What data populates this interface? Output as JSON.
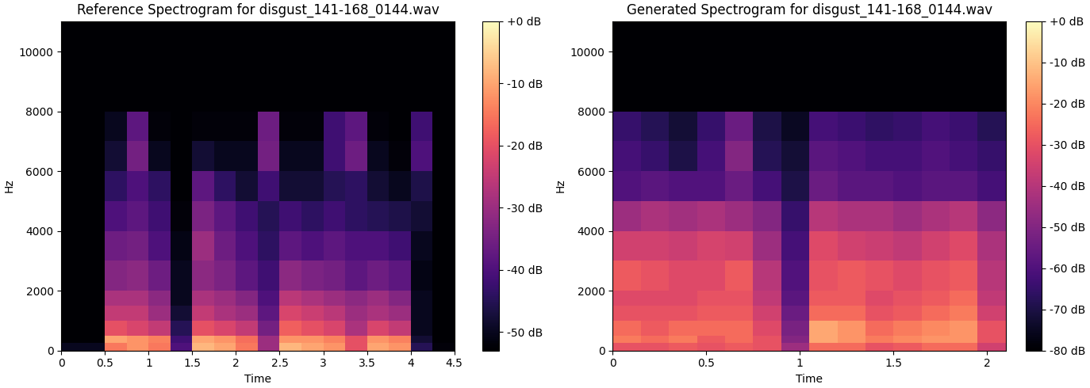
{
  "chart_data": [
    {
      "type": "heatmap",
      "title": "Reference Spectrogram for disgust_141-168_0144.wav",
      "x_label": "Time",
      "y_label": "Hz",
      "xlim": [
        0,
        4.5
      ],
      "xticks": [
        0,
        0.5,
        1,
        1.5,
        2,
        2.5,
        3,
        3.5,
        4,
        4.5
      ],
      "ylim": [
        0,
        11025
      ],
      "yticks": [
        0,
        2000,
        4000,
        6000,
        8000,
        10000
      ],
      "x": [
        0,
        0.25,
        0.5,
        0.75,
        1.0,
        1.25,
        1.5,
        1.75,
        2.0,
        2.25,
        2.5,
        2.75,
        3.0,
        3.25,
        3.5,
        3.75,
        4.0,
        4.25,
        4.5
      ],
      "y": [
        0,
        250,
        500,
        1000,
        1500,
        2000,
        3000,
        4000,
        5000,
        6000,
        7000,
        8000,
        11025
      ],
      "cells": [
        [
          -50,
          -50,
          -15,
          -12,
          -15,
          -40,
          -8,
          -10,
          -15,
          -30,
          -8,
          -10,
          -12,
          -20,
          -10,
          -12,
          -45,
          -52
        ],
        [
          -53,
          -53,
          -10,
          -12,
          -14,
          -42,
          -10,
          -12,
          -16,
          -30,
          -12,
          -12,
          -14,
          -20,
          -12,
          -14,
          -48,
          -53
        ],
        [
          -53,
          -53,
          -20,
          -22,
          -25,
          -45,
          -20,
          -22,
          -25,
          -35,
          -18,
          -20,
          -22,
          -28,
          -22,
          -25,
          -50,
          -53
        ],
        [
          -53,
          -53,
          -25,
          -25,
          -30,
          -48,
          -25,
          -28,
          -30,
          -38,
          -22,
          -24,
          -26,
          -30,
          -28,
          -30,
          -50,
          -53
        ],
        [
          -53,
          -53,
          -28,
          -28,
          -32,
          -50,
          -28,
          -30,
          -33,
          -40,
          -26,
          -28,
          -30,
          -32,
          -30,
          -33,
          -50,
          -53
        ],
        [
          -53,
          -53,
          -33,
          -32,
          -36,
          -50,
          -32,
          -34,
          -38,
          -42,
          -32,
          -34,
          -35,
          -38,
          -36,
          -38,
          -51,
          -53
        ],
        [
          -53,
          -53,
          -36,
          -35,
          -40,
          -51,
          -30,
          -36,
          -40,
          -44,
          -38,
          -40,
          -38,
          -40,
          -40,
          -42,
          -50,
          -53
        ],
        [
          -53,
          -53,
          -40,
          -38,
          -42,
          -52,
          -34,
          -38,
          -42,
          -45,
          -42,
          -44,
          -42,
          -44,
          -45,
          -46,
          -48,
          -53
        ],
        [
          -53,
          -53,
          -44,
          -40,
          -44,
          -53,
          -38,
          -44,
          -48,
          -42,
          -48,
          -48,
          -45,
          -44,
          -48,
          -50,
          -46,
          -53
        ],
        [
          -53,
          -53,
          -48,
          -35,
          -50,
          -53,
          -48,
          -50,
          -50,
          -35,
          -50,
          -50,
          -42,
          -36,
          -50,
          -52,
          -40,
          -53
        ],
        [
          -53,
          -53,
          -50,
          -38,
          -52,
          -53,
          -52,
          -52,
          -52,
          -36,
          -52,
          -52,
          -42,
          -38,
          -52,
          -53,
          -42,
          -53
        ],
        [
          -53,
          -53,
          -53,
          -53,
          -53,
          -53,
          -53,
          -53,
          -53,
          -53,
          -53,
          -53,
          -53,
          -53,
          -53,
          -53,
          -53,
          -53
        ]
      ],
      "colorbar": {
        "lim": [
          -53,
          0
        ],
        "ticks": [
          {
            "value": 0,
            "label": "+0 dB"
          },
          {
            "value": -10,
            "label": "-10 dB"
          },
          {
            "value": -20,
            "label": "-20 dB"
          },
          {
            "value": -30,
            "label": "-30 dB"
          },
          {
            "value": -40,
            "label": "-40 dB"
          },
          {
            "value": -50,
            "label": "-50 dB"
          }
        ]
      }
    },
    {
      "type": "heatmap",
      "title": "Generated Spectrogram for disgust_141-168_0144.wav",
      "x_label": "Time",
      "y_label": "Hz",
      "xlim": [
        0,
        2.1
      ],
      "xticks": [
        0,
        0.5,
        1,
        1.5,
        2
      ],
      "ylim": [
        0,
        11025
      ],
      "yticks": [
        0,
        2000,
        4000,
        6000,
        8000,
        10000
      ],
      "x": [
        0,
        0.15,
        0.3,
        0.45,
        0.6,
        0.75,
        0.9,
        1.05,
        1.2,
        1.35,
        1.5,
        1.65,
        1.8,
        1.95,
        2.1
      ],
      "y": [
        0,
        250,
        500,
        1000,
        1500,
        2000,
        3000,
        4000,
        5000,
        6000,
        7000,
        8000,
        11025
      ],
      "cells": [
        [
          -30,
          -30,
          -28,
          -30,
          -28,
          -30,
          -45,
          -25,
          -25,
          -30,
          -28,
          -25,
          -25,
          -35
        ],
        [
          -22,
          -25,
          -22,
          -28,
          -25,
          -30,
          -50,
          -15,
          -18,
          -22,
          -20,
          -18,
          -18,
          -30
        ],
        [
          -25,
          -28,
          -25,
          -25,
          -25,
          -32,
          -52,
          -15,
          -18,
          -25,
          -22,
          -20,
          -18,
          -30
        ],
        [
          -30,
          -30,
          -30,
          -28,
          -28,
          -35,
          -55,
          -25,
          -25,
          -30,
          -28,
          -25,
          -22,
          -35
        ],
        [
          -32,
          -32,
          -32,
          -30,
          -30,
          -38,
          -58,
          -28,
          -28,
          -32,
          -30,
          -28,
          -25,
          -38
        ],
        [
          -28,
          -30,
          -32,
          -32,
          -28,
          -40,
          -60,
          -30,
          -28,
          -30,
          -32,
          -30,
          -28,
          -40
        ],
        [
          -35,
          -35,
          -36,
          -34,
          -35,
          -45,
          -62,
          -32,
          -35,
          -36,
          -38,
          -35,
          -32,
          -42
        ],
        [
          -45,
          -42,
          -44,
          -42,
          -45,
          -50,
          -65,
          -40,
          -42,
          -42,
          -45,
          -42,
          -40,
          -48
        ],
        [
          -60,
          -58,
          -60,
          -60,
          -55,
          -62,
          -70,
          -55,
          -58,
          -58,
          -60,
          -58,
          -58,
          -62
        ],
        [
          -62,
          -65,
          -70,
          -62,
          -50,
          -68,
          -72,
          -58,
          -60,
          -62,
          -62,
          -60,
          -62,
          -65
        ],
        [
          -65,
          -68,
          -72,
          -65,
          -55,
          -70,
          -75,
          -62,
          -64,
          -66,
          -65,
          -62,
          -64,
          -68
        ],
        [
          -80,
          -80,
          -80,
          -80,
          -80,
          -80,
          -80,
          -80,
          -80,
          -80,
          -80,
          -80,
          -80,
          -80
        ]
      ],
      "colorbar": {
        "lim": [
          -80,
          0
        ],
        "ticks": [
          {
            "value": 0,
            "label": "+0 dB"
          },
          {
            "value": -10,
            "label": "-10 dB"
          },
          {
            "value": -20,
            "label": "-20 dB"
          },
          {
            "value": -30,
            "label": "-30 dB"
          },
          {
            "value": -40,
            "label": "-40 dB"
          },
          {
            "value": -50,
            "label": "-50 dB"
          },
          {
            "value": -60,
            "label": "-60 dB"
          },
          {
            "value": -70,
            "label": "-70 dB"
          },
          {
            "value": -80,
            "label": "-80 dB"
          }
        ]
      }
    }
  ]
}
